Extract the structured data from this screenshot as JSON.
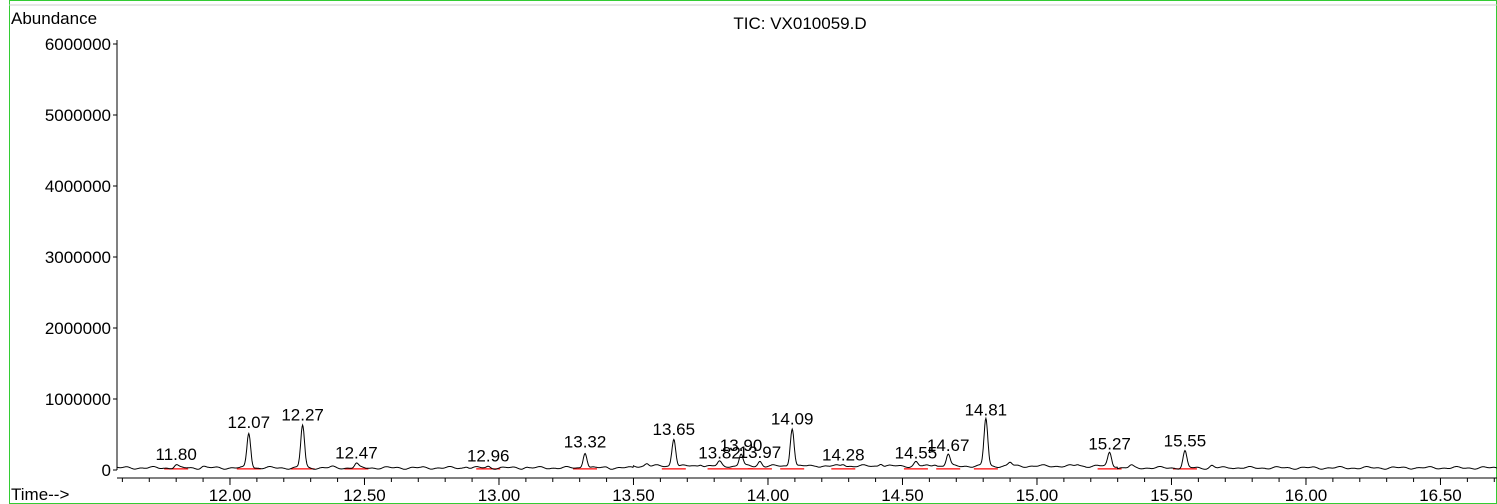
{
  "chart_data": {
    "type": "line",
    "title": "TIC: VX010059.D",
    "ylabel": "Abundance",
    "xlabel": "Time-->",
    "x_range": [
      11.58,
      16.8
    ],
    "ylim": [
      0,
      6000000
    ],
    "y_ticks": [
      {
        "value": 0,
        "label": "0"
      },
      {
        "value": 1000000,
        "label": "1000000"
      },
      {
        "value": 2000000,
        "label": "2000000"
      },
      {
        "value": 3000000,
        "label": "3000000"
      },
      {
        "value": 4000000,
        "label": "4000000"
      },
      {
        "value": 5000000,
        "label": "5000000"
      },
      {
        "value": 6000000,
        "label": "6000000"
      }
    ],
    "x_ticks": [
      {
        "value": 12.0,
        "label": "12.00"
      },
      {
        "value": 12.5,
        "label": "12.50"
      },
      {
        "value": 13.0,
        "label": "13.00"
      },
      {
        "value": 13.5,
        "label": "13.50"
      },
      {
        "value": 14.0,
        "label": "14.00"
      },
      {
        "value": 14.5,
        "label": "14.50"
      },
      {
        "value": 15.0,
        "label": "15.00"
      },
      {
        "value": 15.5,
        "label": "15.50"
      },
      {
        "value": 16.0,
        "label": "16.00"
      },
      {
        "value": 16.5,
        "label": "16.50"
      }
    ],
    "baseline": 30000,
    "peaks": [
      {
        "rt": 11.8,
        "label": "11.80",
        "height": 70000
      },
      {
        "rt": 12.07,
        "label": "12.07",
        "height": 520000
      },
      {
        "rt": 12.27,
        "label": "12.27",
        "height": 630000
      },
      {
        "rt": 12.47,
        "label": "12.47",
        "height": 90000
      },
      {
        "rt": 12.96,
        "label": "12.96",
        "height": 50000
      },
      {
        "rt": 13.32,
        "label": "13.32",
        "height": 250000
      },
      {
        "rt": 13.65,
        "label": "13.65",
        "height": 420000
      },
      {
        "rt": 13.82,
        "label": "13.82",
        "height": 90000
      },
      {
        "rt": 13.9,
        "label": "13.90",
        "height": 200000
      },
      {
        "rt": 13.97,
        "label": "13.97",
        "height": 100000
      },
      {
        "rt": 14.09,
        "label": "14.09",
        "height": 570000
      },
      {
        "rt": 14.28,
        "label": "14.28",
        "height": 60000
      },
      {
        "rt": 14.55,
        "label": "14.55",
        "height": 90000
      },
      {
        "rt": 14.67,
        "label": "14.67",
        "height": 200000
      },
      {
        "rt": 14.81,
        "label": "14.81",
        "height": 700000
      },
      {
        "rt": 15.27,
        "label": "15.27",
        "height": 220000
      },
      {
        "rt": 15.55,
        "label": "15.55",
        "height": 260000
      }
    ],
    "minor_peaks": [
      {
        "rt": 11.67,
        "height": 30000
      },
      {
        "rt": 11.9,
        "height": 50000
      },
      {
        "rt": 12.18,
        "height": 30000
      },
      {
        "rt": 12.38,
        "height": 40000
      },
      {
        "rt": 12.88,
        "height": 50000
      },
      {
        "rt": 13.1,
        "height": 40000
      },
      {
        "rt": 13.4,
        "height": 40000
      },
      {
        "rt": 13.55,
        "height": 70000
      },
      {
        "rt": 13.75,
        "height": 60000
      },
      {
        "rt": 14.18,
        "height": 40000
      },
      {
        "rt": 14.42,
        "height": 70000
      },
      {
        "rt": 14.62,
        "height": 60000
      },
      {
        "rt": 14.9,
        "height": 80000
      },
      {
        "rt": 15.15,
        "height": 50000
      },
      {
        "rt": 15.35,
        "height": 60000
      },
      {
        "rt": 15.65,
        "height": 60000
      },
      {
        "rt": 15.72,
        "height": 40000
      },
      {
        "rt": 16.4,
        "height": 35000
      }
    ],
    "colors": {
      "trace": "#000000",
      "integration": "#ff0000",
      "frame": "#33cc33"
    }
  }
}
